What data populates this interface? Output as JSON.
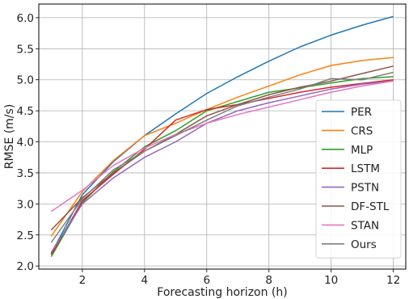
{
  "chart_data": {
    "type": "line",
    "xlabel": "Forecasting horizon (h)",
    "ylabel": "RMSE (m/s)",
    "xlim": [
      0.6,
      12.4
    ],
    "ylim": [
      1.95,
      6.22
    ],
    "xticks": [
      2,
      4,
      6,
      8,
      10,
      12
    ],
    "yticks": [
      2.0,
      2.5,
      3.0,
      3.5,
      4.0,
      4.5,
      5.0,
      5.5,
      6.0
    ],
    "ytick_labels": [
      "2.0",
      "2.5",
      "3.0",
      "3.5",
      "4.0",
      "4.5",
      "5.0",
      "5.5",
      "6.0"
    ],
    "grid": true,
    "legend_position": "lower-right",
    "x": [
      1,
      2,
      3,
      4,
      5,
      6,
      7,
      8,
      9,
      10,
      11,
      12
    ],
    "series": [
      {
        "name": "PER",
        "color": "#1f77b4",
        "values": [
          2.2,
          3.15,
          3.68,
          4.1,
          4.45,
          4.78,
          5.05,
          5.3,
          5.53,
          5.72,
          5.88,
          6.02
        ]
      },
      {
        "name": "CRS",
        "color": "#ff7f0e",
        "values": [
          2.48,
          3.2,
          3.7,
          4.1,
          4.3,
          4.52,
          4.72,
          4.9,
          5.08,
          5.23,
          5.31,
          5.36
        ]
      },
      {
        "name": "MLP",
        "color": "#2ca02c",
        "values": [
          2.15,
          3.02,
          3.52,
          3.92,
          4.18,
          4.5,
          4.65,
          4.8,
          4.87,
          4.95,
          5.02,
          5.05
        ]
      },
      {
        "name": "LSTM",
        "color": "#d62728",
        "values": [
          2.18,
          3.05,
          3.48,
          3.88,
          4.35,
          4.52,
          4.6,
          4.7,
          4.8,
          4.88,
          4.94,
          5.0
        ]
      },
      {
        "name": "PSTN",
        "color": "#9467bd",
        "values": [
          2.22,
          3.0,
          3.42,
          3.75,
          4.0,
          4.3,
          4.5,
          4.63,
          4.74,
          4.85,
          4.93,
          4.98
        ]
      },
      {
        "name": "DF-STL",
        "color": "#8c564b",
        "values": [
          2.58,
          3.1,
          3.5,
          3.85,
          4.12,
          4.42,
          4.6,
          4.76,
          4.88,
          4.98,
          5.1,
          5.22
        ]
      },
      {
        "name": "STAN",
        "color": "#e377c2",
        "values": [
          2.88,
          3.22,
          3.62,
          3.9,
          4.12,
          4.3,
          4.44,
          4.56,
          4.68,
          4.8,
          4.9,
          4.98
        ]
      },
      {
        "name": "Ours",
        "color": "#7f7f7f",
        "values": [
          2.38,
          3.08,
          3.55,
          3.85,
          4.1,
          4.35,
          4.58,
          4.72,
          4.85,
          5.02,
          5.0,
          5.12
        ]
      }
    ]
  }
}
